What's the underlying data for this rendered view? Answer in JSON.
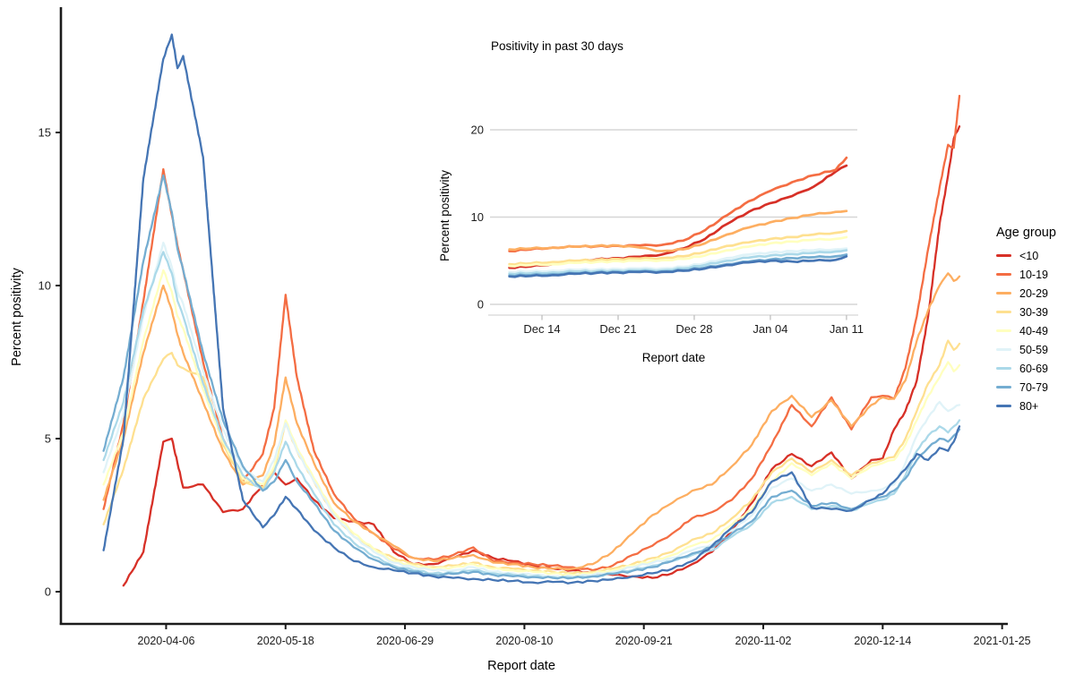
{
  "figure": {
    "background": "#ffffff",
    "axis_color": "#1b1b1b",
    "tick_text_color": "#1c1c1c",
    "grid_color": "#d6d6d6",
    "inset_tick_color": "#bfbfbf"
  },
  "legend": {
    "title": "Age group",
    "items": [
      {
        "label": "<10",
        "color": "#d73027"
      },
      {
        "label": "10-19",
        "color": "#f46d43"
      },
      {
        "label": "20-29",
        "color": "#fdae61"
      },
      {
        "label": "30-39",
        "color": "#fee090"
      },
      {
        "label": "40-49",
        "color": "#ffffbf"
      },
      {
        "label": "50-59",
        "color": "#e0f3f8"
      },
      {
        "label": "60-69",
        "color": "#abd9e9"
      },
      {
        "label": "70-79",
        "color": "#74add1"
      },
      {
        "label": "80+",
        "color": "#4575b4"
      }
    ]
  },
  "chart_data": [
    {
      "id": "main",
      "type": "line",
      "xlabel": "Report date",
      "ylabel": "Percent positivity",
      "x_unit": "days since 2020-03-15",
      "x_domain": [
        -15,
        318
      ],
      "ylim": [
        0,
        19
      ],
      "grid": false,
      "legend_position": "right",
      "y_ticks": [
        {
          "value": 0,
          "label": "0"
        },
        {
          "value": 5,
          "label": "5"
        },
        {
          "value": 10,
          "label": "10"
        },
        {
          "value": 15,
          "label": "15"
        }
      ],
      "x_ticks": [
        {
          "label": "2020-04-06",
          "day": 22
        },
        {
          "label": "2020-05-18",
          "day": 64
        },
        {
          "label": "2020-06-29",
          "day": 106
        },
        {
          "label": "2020-08-10",
          "day": 148
        },
        {
          "label": "2020-09-21",
          "day": 190
        },
        {
          "label": "2020-11-02",
          "day": 232
        },
        {
          "label": "2020-12-14",
          "day": 274
        },
        {
          "label": "2021-01-25",
          "day": 316
        }
      ],
      "x_days": [
        0,
        7,
        14,
        21,
        24,
        26,
        28,
        35,
        42,
        49,
        56,
        60,
        64,
        68,
        74,
        81,
        88,
        95,
        102,
        109,
        116,
        123,
        130,
        137,
        144,
        151,
        158,
        165,
        172,
        179,
        186,
        193,
        200,
        207,
        214,
        221,
        228,
        235,
        242,
        249,
        256,
        263,
        270,
        274,
        278,
        282,
        286,
        290,
        294,
        297,
        299,
        301
      ],
      "series": [
        {
          "name": "<10",
          "color": "#d73027",
          "values": [
            null,
            0.2,
            1.3,
            4.9,
            5.0,
            4.2,
            3.4,
            3.5,
            2.6,
            2.7,
            3.5,
            3.9,
            3.5,
            3.7,
            3.0,
            2.4,
            2.3,
            2.2,
            1.3,
            0.9,
            0.9,
            1.1,
            1.35,
            1.1,
            1.0,
            0.85,
            0.75,
            0.7,
            0.6,
            0.55,
            0.5,
            0.45,
            0.6,
            0.9,
            1.3,
            2.0,
            2.9,
            4.0,
            4.5,
            4.1,
            4.55,
            3.7,
            4.3,
            4.35,
            5.3,
            5.9,
            6.9,
            9.0,
            12.0,
            13.6,
            14.8,
            15.2
          ]
        },
        {
          "name": "10-19",
          "color": "#f46d43",
          "values": [
            2.7,
            5.5,
            9.5,
            13.8,
            12.3,
            11.3,
            10.5,
            7.5,
            5.0,
            3.6,
            4.5,
            6.0,
            9.7,
            7.0,
            4.6,
            3.2,
            2.4,
            1.9,
            1.4,
            1.1,
            1.05,
            1.2,
            1.45,
            1.0,
            0.95,
            0.9,
            0.85,
            0.8,
            0.7,
            0.85,
            1.2,
            1.5,
            1.9,
            2.4,
            2.6,
            3.0,
            3.7,
            4.8,
            6.1,
            5.4,
            6.35,
            5.3,
            6.35,
            6.4,
            6.3,
            7.3,
            9.0,
            11.2,
            13.2,
            14.6,
            14.5,
            16.2
          ]
        },
        {
          "name": "20-29",
          "color": "#fdae61",
          "values": [
            3.0,
            5.0,
            7.8,
            10.0,
            9.2,
            8.4,
            7.8,
            6.2,
            4.6,
            3.5,
            3.8,
            4.8,
            7.0,
            5.5,
            4.2,
            2.9,
            2.3,
            1.9,
            1.5,
            1.1,
            1.0,
            1.1,
            1.2,
            0.95,
            0.9,
            0.8,
            0.75,
            0.75,
            0.9,
            1.3,
            1.9,
            2.5,
            2.9,
            3.3,
            3.5,
            4.1,
            4.8,
            5.9,
            6.4,
            5.7,
            6.25,
            5.4,
            6.1,
            6.35,
            6.3,
            6.9,
            8.2,
            9.2,
            10.0,
            10.4,
            10.15,
            10.3
          ]
        },
        {
          "name": "30-39",
          "color": "#fee090",
          "values": [
            2.2,
            4.0,
            6.3,
            7.6,
            7.8,
            7.4,
            7.3,
            7.0,
            4.8,
            3.6,
            3.4,
            4.0,
            5.5,
            4.6,
            3.6,
            2.5,
            1.8,
            1.4,
            1.1,
            0.9,
            0.8,
            0.85,
            0.95,
            0.8,
            0.75,
            0.7,
            0.65,
            0.6,
            0.65,
            0.75,
            0.9,
            1.1,
            1.3,
            1.7,
            1.9,
            2.4,
            3.0,
            3.9,
            4.35,
            3.9,
            4.3,
            3.8,
            4.2,
            4.3,
            4.4,
            5.0,
            5.9,
            6.8,
            7.4,
            8.2,
            7.9,
            8.1
          ]
        },
        {
          "name": "40-49",
          "color": "#ffffbf",
          "values": [
            3.5,
            5.2,
            8.2,
            10.5,
            9.8,
            9.0,
            8.6,
            6.6,
            4.9,
            3.7,
            3.5,
            4.1,
            5.6,
            4.7,
            3.7,
            2.6,
            1.9,
            1.4,
            1.0,
            0.85,
            0.75,
            0.8,
            0.9,
            0.75,
            0.7,
            0.65,
            0.6,
            0.55,
            0.6,
            0.7,
            0.85,
            1.0,
            1.2,
            1.5,
            1.7,
            2.2,
            2.7,
            3.6,
            4.2,
            3.8,
            4.2,
            3.7,
            4.1,
            4.2,
            4.3,
            4.8,
            5.6,
            6.4,
            7.0,
            7.5,
            7.2,
            7.4
          ]
        },
        {
          "name": "50-59",
          "color": "#e0f3f8",
          "values": [
            3.9,
            5.8,
            9.0,
            11.4,
            10.6,
            9.8,
            9.4,
            7.2,
            5.3,
            4.0,
            3.6,
            4.3,
            5.5,
            4.6,
            3.6,
            2.5,
            1.8,
            1.3,
            0.95,
            0.8,
            0.7,
            0.7,
            0.8,
            0.65,
            0.6,
            0.55,
            0.5,
            0.5,
            0.55,
            0.65,
            0.8,
            0.95,
            1.1,
            1.35,
            1.55,
            2.0,
            2.5,
            3.4,
            3.7,
            3.3,
            3.5,
            3.2,
            3.3,
            3.35,
            3.5,
            4.2,
            5.1,
            5.7,
            6.2,
            5.9,
            6.0,
            6.1
          ]
        },
        {
          "name": "60-69",
          "color": "#abd9e9",
          "values": [
            4.3,
            6.2,
            9.2,
            11.1,
            10.4,
            9.5,
            9.0,
            6.8,
            5.0,
            3.8,
            3.3,
            3.9,
            4.9,
            4.1,
            3.2,
            2.2,
            1.6,
            1.15,
            0.85,
            0.7,
            0.6,
            0.62,
            0.7,
            0.6,
            0.55,
            0.5,
            0.48,
            0.45,
            0.5,
            0.6,
            0.7,
            0.85,
            1.0,
            1.2,
            1.35,
            1.8,
            2.2,
            2.9,
            3.1,
            2.7,
            2.8,
            2.65,
            2.9,
            3.0,
            3.2,
            3.8,
            4.6,
            5.1,
            5.4,
            5.2,
            5.4,
            5.6
          ]
        },
        {
          "name": "70-79",
          "color": "#74add1",
          "values": [
            4.6,
            7.0,
            10.8,
            13.6,
            12.4,
            11.2,
            10.5,
            7.8,
            5.6,
            4.1,
            3.3,
            3.6,
            4.3,
            3.6,
            2.9,
            2.0,
            1.45,
            1.05,
            0.8,
            0.65,
            0.55,
            0.58,
            0.65,
            0.55,
            0.5,
            0.48,
            0.45,
            0.45,
            0.5,
            0.58,
            0.68,
            0.8,
            1.0,
            1.25,
            1.45,
            1.9,
            2.3,
            3.1,
            3.3,
            2.8,
            2.9,
            2.7,
            3.0,
            3.1,
            3.3,
            3.7,
            4.3,
            4.7,
            5.0,
            4.9,
            5.1,
            5.3
          ]
        },
        {
          "name": "80+",
          "color": "#4575b4",
          "values": [
            1.35,
            5.0,
            13.5,
            17.4,
            18.2,
            17.1,
            17.5,
            14.2,
            6.0,
            3.0,
            2.1,
            2.5,
            3.1,
            2.7,
            2.0,
            1.45,
            1.0,
            0.8,
            0.7,
            0.6,
            0.5,
            0.45,
            0.42,
            0.38,
            0.35,
            0.3,
            0.32,
            0.3,
            0.35,
            0.4,
            0.5,
            0.6,
            0.75,
            1.0,
            1.5,
            2.1,
            2.6,
            3.6,
            3.9,
            2.75,
            2.7,
            2.65,
            3.0,
            3.2,
            3.6,
            4.0,
            4.5,
            4.3,
            4.7,
            4.6,
            4.9,
            5.4
          ]
        }
      ]
    },
    {
      "id": "inset",
      "type": "line",
      "title": "Positivity in past 30 days",
      "xlabel": "Report date",
      "ylabel": "Percent positivity",
      "x_unit": "days since 2020-12-11",
      "x_domain": [
        -1.8,
        32
      ],
      "ylim": [
        0,
        22
      ],
      "grid": true,
      "y_ticks": [
        {
          "value": 0,
          "label": "0"
        },
        {
          "value": 10,
          "label": "10"
        },
        {
          "value": 20,
          "label": "20"
        }
      ],
      "x_ticks": [
        {
          "label": "Dec 14",
          "day": 3
        },
        {
          "label": "Dec 21",
          "day": 10
        },
        {
          "label": "Dec 28",
          "day": 17
        },
        {
          "label": "Jan 04",
          "day": 24
        },
        {
          "label": "Jan 11",
          "day": 31
        }
      ],
      "x_days": [
        0,
        2,
        4,
        6,
        8,
        10,
        12,
        14,
        16,
        18,
        20,
        22,
        24,
        26,
        28,
        30,
        31
      ],
      "series": [
        {
          "name": "<10",
          "color": "#d73027",
          "values": [
            4.2,
            4.35,
            4.6,
            4.9,
            5.15,
            5.3,
            5.45,
            5.7,
            6.4,
            7.5,
            9.2,
            10.6,
            11.6,
            12.4,
            13.5,
            15.2,
            15.9
          ]
        },
        {
          "name": "10-19",
          "color": "#f46d43",
          "values": [
            6.1,
            6.3,
            6.5,
            6.6,
            6.65,
            6.7,
            6.75,
            6.8,
            7.3,
            8.5,
            10.2,
            11.8,
            13.0,
            14.0,
            14.8,
            15.4,
            16.8
          ]
        },
        {
          "name": "20-29",
          "color": "#fdae61",
          "values": [
            6.3,
            6.4,
            6.5,
            6.6,
            6.7,
            6.75,
            6.5,
            6.1,
            6.3,
            7.0,
            8.0,
            8.8,
            9.4,
            9.9,
            10.3,
            10.6,
            10.7
          ]
        },
        {
          "name": "30-39",
          "color": "#fee090",
          "values": [
            4.6,
            4.7,
            4.85,
            5.0,
            5.1,
            5.2,
            5.25,
            5.3,
            5.5,
            6.0,
            6.7,
            7.1,
            7.5,
            7.7,
            8.0,
            8.2,
            8.4
          ]
        },
        {
          "name": "40-49",
          "color": "#ffffbf",
          "values": [
            4.4,
            4.5,
            4.6,
            4.75,
            4.85,
            4.95,
            5.0,
            5.05,
            5.2,
            5.6,
            6.2,
            6.6,
            7.0,
            7.2,
            7.4,
            7.5,
            7.7
          ]
        },
        {
          "name": "50-59",
          "color": "#e0f3f8",
          "values": [
            3.7,
            3.75,
            3.85,
            3.95,
            4.0,
            4.05,
            4.1,
            4.1,
            4.3,
            4.7,
            5.3,
            5.7,
            5.95,
            6.1,
            6.2,
            6.3,
            6.4
          ]
        },
        {
          "name": "60-69",
          "color": "#abd9e9",
          "values": [
            3.5,
            3.55,
            3.65,
            3.75,
            3.8,
            3.85,
            3.9,
            3.9,
            4.1,
            4.5,
            5.0,
            5.35,
            5.6,
            5.75,
            5.9,
            6.05,
            6.2
          ]
        },
        {
          "name": "70-79",
          "color": "#74add1",
          "values": [
            3.3,
            3.35,
            3.45,
            3.55,
            3.65,
            3.7,
            3.75,
            3.75,
            3.9,
            4.2,
            4.6,
            4.9,
            5.15,
            5.3,
            5.4,
            5.5,
            5.7
          ]
        },
        {
          "name": "80+",
          "color": "#4575b4",
          "values": [
            3.2,
            3.25,
            3.35,
            3.5,
            3.6,
            3.65,
            3.7,
            3.7,
            3.85,
            4.1,
            4.5,
            4.8,
            5.0,
            4.9,
            5.0,
            5.1,
            5.5
          ]
        }
      ]
    }
  ]
}
